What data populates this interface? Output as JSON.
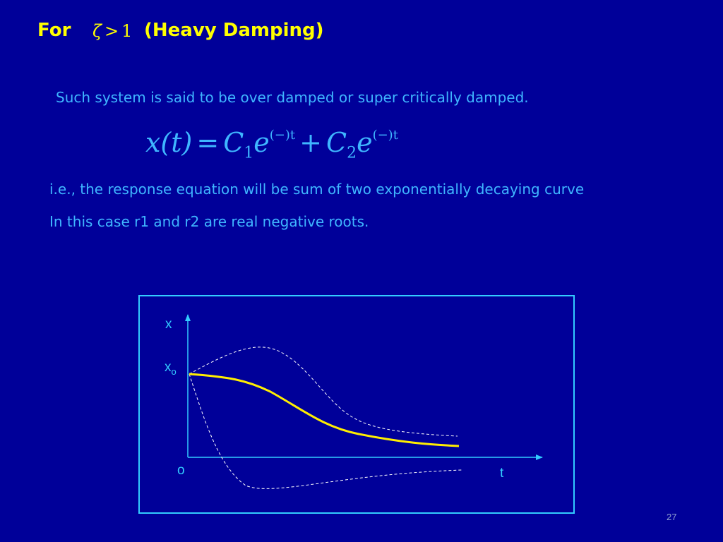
{
  "slide": {
    "title_prefix": "For",
    "title_math_symbol": "ζ",
    "title_math_op": ">",
    "title_math_value": "1",
    "title_label": "(Heavy Damping)",
    "paragraph1": "Such system is said to be over damped or super critically damped.",
    "equation": {
      "lhs": "x(t)",
      "equals": "=",
      "c1": "C",
      "c1_sub": "1",
      "e1": "e",
      "exp1": "(−)t",
      "plus": "+",
      "c2": "C",
      "c2_sub": "2",
      "e2": "e",
      "exp2": "(−)t"
    },
    "paragraph2": "i.e., the response equation will be sum of two exponentially decaying curve",
    "paragraph3": "In this case r1 and r2 are real negative roots.",
    "page_number": "27"
  },
  "figure": {
    "y_axis_label": "x",
    "x0_label": "x",
    "x0_subscript": "o",
    "origin_label": "o",
    "x_axis_label": "t",
    "main_curve_color": "#ffee00",
    "envelope_color": "#ffffff",
    "axis_color": "#33ccff"
  },
  "colors": {
    "background": "#000099",
    "title": "#ffff00",
    "body_text": "#3fb6ff",
    "border": "#33ccff"
  }
}
